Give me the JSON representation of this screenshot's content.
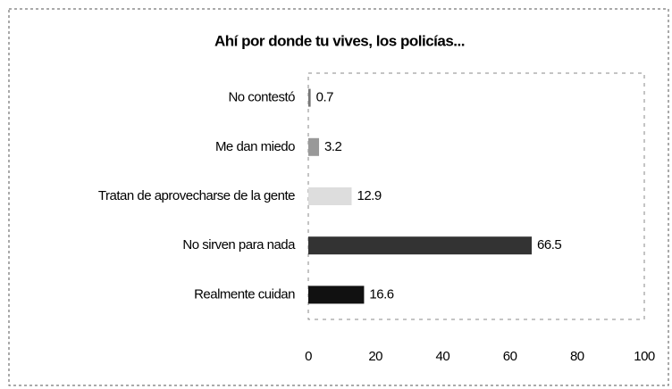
{
  "chart_data": {
    "type": "barh",
    "title": "Ahí por donde tu vives, los policías...",
    "categories": [
      "No contestó",
      "Me dan miedo",
      "Tratan de aprovecharse de la gente",
      "No sirven para nada",
      "Realmente cuidan"
    ],
    "values": [
      0.7,
      3.2,
      12.9,
      66.5,
      16.6
    ],
    "colors": [
      "#777777",
      "#999999",
      "#dddddd",
      "#333333",
      "#111111"
    ],
    "xlim": [
      0,
      100
    ],
    "xticks": [
      0,
      20,
      40,
      60,
      80,
      100
    ]
  }
}
